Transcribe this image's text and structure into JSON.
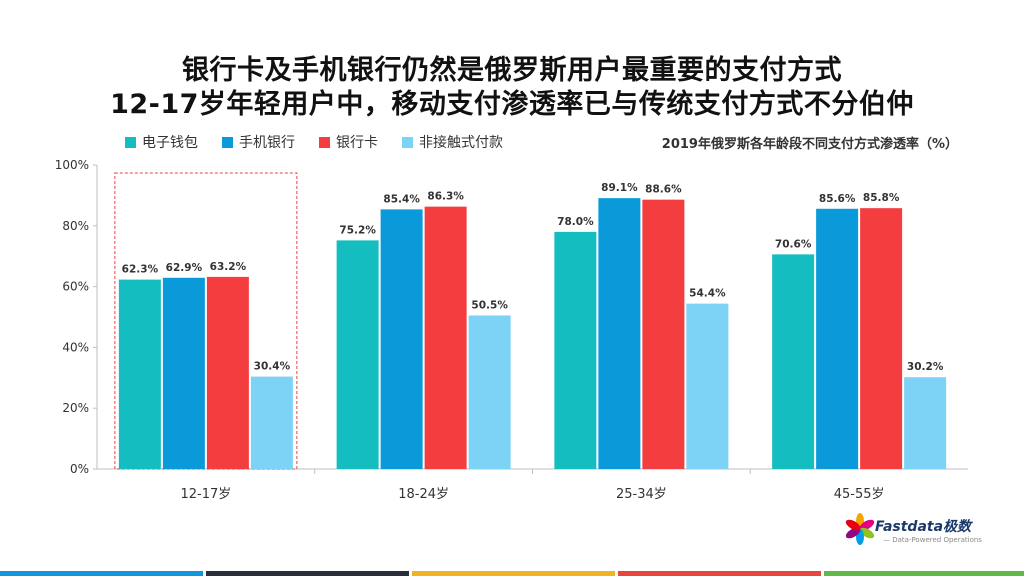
{
  "title_line1": "银行卡及手机银行仍然是俄罗斯用户最重要的支付方式",
  "title_line2": "12-17岁年轻用户中，移动支付渗透率已与传统支付方式不分伯仲",
  "logo": {
    "name": "Fastdata极数",
    "tagline": "— Data-Powered Operations"
  },
  "chart_data": {
    "type": "bar",
    "title": "2019年俄罗斯各年龄段不同支付方式渗透率（%）",
    "categories": [
      "12-17岁",
      "18-24岁",
      "25-34岁",
      "45-55岁"
    ],
    "series": [
      {
        "name": "电子钱包",
        "color": "#14BDC0",
        "values": [
          62.3,
          75.2,
          78.0,
          70.6
        ]
      },
      {
        "name": "手机银行",
        "color": "#0B9AD9",
        "values": [
          62.9,
          85.4,
          89.1,
          85.6
        ]
      },
      {
        "name": "银行卡",
        "color": "#F43D3E",
        "values": [
          63.2,
          86.3,
          88.6,
          85.8
        ]
      },
      {
        "name": "非接触式付款",
        "color": "#7DD3F5",
        "values": [
          30.4,
          50.5,
          54.4,
          30.2
        ]
      }
    ],
    "ylim": [
      0,
      100
    ],
    "yticks": [
      "0%",
      "20%",
      "40%",
      "60%",
      "80%",
      "100%"
    ],
    "value_suffix": "%",
    "highlight_category": "12-17岁",
    "legend_position": "top-left",
    "grid": false
  }
}
